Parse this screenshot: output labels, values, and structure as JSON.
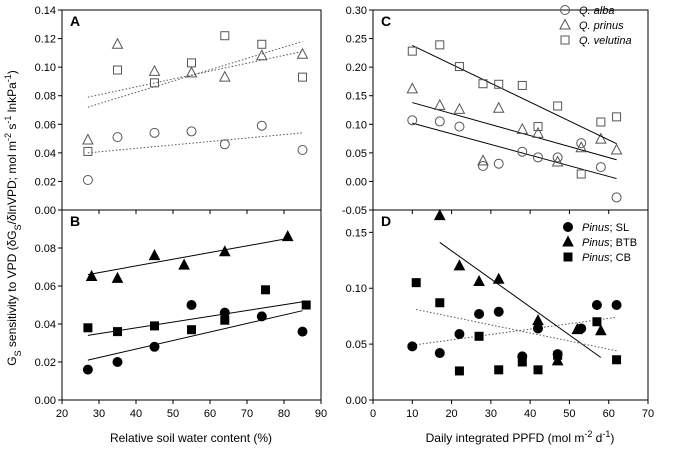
{
  "figure": {
    "ylabel_shared": "GS sensitivity to VPD (δGS/δlnVPD; mol m-2 s-1 lnkPa-1)",
    "ylabel_parts": {
      "g": "G",
      "s": "S",
      "mid1": " sensitivity to VPD (δG",
      "s2": "S",
      "mid2": "/δlnVPD; mol m",
      "exp1": "-2",
      "mid3": " s",
      "exp2": "-1",
      "end": " lnkPa",
      "exp3": "-1",
      "close": ")"
    },
    "xlabel_left": "Relative soil water content (%)",
    "xlabel_right_parts": {
      "a": "Daily integrated PPFD (mol m",
      "e1": "-2",
      "b": " d",
      "e2": "-1",
      "c": ")"
    },
    "colors": {
      "open": "#555555",
      "filled": "#000000",
      "line": "#000000",
      "dotted": "#555555"
    }
  },
  "legend_top": [
    {
      "label": "Q. alba",
      "marker": "circle-open"
    },
    {
      "label": "Q. prinus",
      "marker": "triangle-open"
    },
    {
      "label": "Q. velutina",
      "marker": "square-open"
    }
  ],
  "legend_bottom": [
    {
      "genus": "Pinus",
      "suffix": "; SL",
      "marker": "circle-filled"
    },
    {
      "genus": "Pinus",
      "suffix": "; BTB",
      "marker": "triangle-filled"
    },
    {
      "genus": "Pinus",
      "suffix": "; CB",
      "marker": "square-filled"
    }
  ],
  "chart_data": [
    {
      "panel": "A",
      "type": "scatter",
      "xlim": [
        20,
        90
      ],
      "ylim": [
        0,
        0.14
      ],
      "xticks": [],
      "yticks": [
        "0.00",
        "0.02",
        "0.04",
        "0.06",
        "0.08",
        "0.10",
        "0.12",
        "0.14"
      ],
      "series": [
        {
          "name": "Q. alba",
          "marker": "circle-open",
          "x": [
            27,
            35,
            45,
            55,
            64,
            74,
            85
          ],
          "y": [
            0.021,
            0.051,
            0.054,
            0.055,
            0.046,
            0.059,
            0.042
          ],
          "fit": {
            "style": "dotted",
            "x": [
              27,
              85
            ],
            "y": [
              0.04,
              0.054
            ]
          }
        },
        {
          "name": "Q. prinus",
          "marker": "triangle-open",
          "x": [
            27,
            35,
            45,
            55,
            64,
            74,
            85
          ],
          "y": [
            0.049,
            0.116,
            0.097,
            0.096,
            0.093,
            0.108,
            0.109
          ],
          "fit": {
            "style": "dotted",
            "x": [
              27,
              85
            ],
            "y": [
              0.079,
              0.111
            ]
          }
        },
        {
          "name": "Q. velutina",
          "marker": "square-open",
          "x": [
            27,
            35,
            45,
            55,
            64,
            74,
            85
          ],
          "y": [
            0.041,
            0.098,
            0.089,
            0.103,
            0.122,
            0.116,
            0.093
          ],
          "fit": {
            "style": "dotted",
            "x": [
              27,
              85
            ],
            "y": [
              0.072,
              0.118
            ]
          }
        }
      ]
    },
    {
      "panel": "C",
      "type": "scatter",
      "xlim": [
        0,
        70
      ],
      "ylim": [
        -0.05,
        0.3
      ],
      "xticks": [],
      "yticks": [
        "-0.05",
        "0.00",
        "0.05",
        "0.10",
        "0.15",
        "0.20",
        "0.25",
        "0.30"
      ],
      "series": [
        {
          "name": "Q. alba",
          "marker": "circle-open",
          "x": [
            10,
            17,
            22,
            28,
            32,
            38,
            42,
            47,
            53,
            58,
            62
          ],
          "y": [
            0.107,
            0.105,
            0.096,
            0.027,
            0.031,
            0.052,
            0.042,
            0.042,
            0.067,
            0.025,
            -0.028
          ],
          "fit": {
            "style": "solid",
            "x": [
              10,
              62
            ],
            "y": [
              0.102,
              0.005
            ]
          }
        },
        {
          "name": "Q. prinus",
          "marker": "triangle-open",
          "x": [
            10,
            17,
            22,
            28,
            32,
            38,
            42,
            47,
            53,
            58,
            62
          ],
          "y": [
            0.162,
            0.133,
            0.126,
            0.036,
            0.128,
            0.091,
            0.084,
            0.034,
            0.059,
            0.074,
            0.055
          ],
          "fit": {
            "style": "solid",
            "x": [
              10,
              62
            ],
            "y": [
              0.138,
              0.038
            ]
          }
        },
        {
          "name": "Q. velutina",
          "marker": "square-open",
          "x": [
            10,
            17,
            22,
            28,
            32,
            38,
            42,
            47,
            53,
            58,
            62
          ],
          "y": [
            0.228,
            0.239,
            0.201,
            0.171,
            0.17,
            0.168,
            0.096,
            0.132,
            0.013,
            0.104,
            0.113
          ],
          "fit": {
            "style": "solid",
            "x": [
              10,
              62
            ],
            "y": [
              0.238,
              0.066
            ]
          }
        }
      ]
    },
    {
      "panel": "B",
      "type": "scatter",
      "xlim": [
        20,
        90
      ],
      "ylim": [
        0,
        0.1
      ],
      "xticks": [
        "20",
        "30",
        "40",
        "50",
        "60",
        "70",
        "80",
        "90"
      ],
      "yticks": [
        "0.00",
        "0.02",
        "0.04",
        "0.06",
        "0.08"
      ],
      "series": [
        {
          "name": "Pinus; SL",
          "marker": "circle-filled",
          "x": [
            27,
            35,
            45,
            55,
            64,
            74,
            85
          ],
          "y": [
            0.016,
            0.02,
            0.028,
            0.05,
            0.046,
            0.044,
            0.036
          ],
          "fit": {
            "style": "solid",
            "x": [
              27,
              85
            ],
            "y": [
              0.021,
              0.047
            ]
          }
        },
        {
          "name": "Pinus; BTB",
          "marker": "triangle-filled",
          "x": [
            28,
            35,
            45,
            53,
            64,
            81
          ],
          "y": [
            0.065,
            0.064,
            0.076,
            0.071,
            0.078,
            0.086
          ],
          "fit": {
            "style": "solid",
            "x": [
              27,
              81
            ],
            "y": [
              0.066,
              0.085
            ]
          }
        },
        {
          "name": "Pinus; CB",
          "marker": "square-filled",
          "x": [
            27,
            35,
            45,
            55,
            64,
            75,
            86
          ],
          "y": [
            0.038,
            0.036,
            0.039,
            0.037,
            0.042,
            0.058,
            0.05
          ],
          "fit": {
            "style": "solid",
            "x": [
              27,
              86
            ],
            "y": [
              0.034,
              0.052
            ]
          }
        }
      ]
    },
    {
      "panel": "D",
      "type": "scatter",
      "xlim": [
        0,
        70
      ],
      "ylim": [
        0,
        0.17
      ],
      "xticks": [
        "0",
        "10",
        "20",
        "30",
        "40",
        "50",
        "60",
        "70"
      ],
      "yticks": [
        "0.00",
        "0.05",
        "0.10",
        "0.15"
      ],
      "series": [
        {
          "name": "Pinus; SL",
          "marker": "circle-filled",
          "x": [
            10,
            17,
            22,
            27,
            32,
            38,
            42,
            47,
            53,
            57,
            62
          ],
          "y": [
            0.048,
            0.042,
            0.059,
            0.077,
            0.079,
            0.039,
            0.064,
            0.041,
            0.064,
            0.085,
            0.085
          ],
          "fit": {
            "style": "dotted",
            "x": [
              10,
              62
            ],
            "y": [
              0.049,
              0.074
            ]
          }
        },
        {
          "name": "Pinus; BTB",
          "marker": "triangle-filled",
          "x": [
            17,
            22,
            27,
            32,
            42,
            47,
            52,
            58
          ],
          "y": [
            0.165,
            0.12,
            0.106,
            0.108,
            0.071,
            0.035,
            0.063,
            0.062
          ],
          "fit": {
            "style": "solid",
            "x": [
              17,
              58
            ],
            "y": [
              0.141,
              0.038
            ]
          }
        },
        {
          "name": "Pinus; CB",
          "marker": "square-filled",
          "x": [
            11,
            17,
            22,
            27,
            32,
            38,
            42,
            47,
            57,
            62
          ],
          "y": [
            0.105,
            0.087,
            0.026,
            0.057,
            0.027,
            0.034,
            0.027,
            0.04,
            0.07,
            0.036
          ],
          "fit": {
            "style": "dotted",
            "x": [
              11,
              62
            ],
            "y": [
              0.081,
              0.044
            ]
          }
        }
      ]
    }
  ]
}
